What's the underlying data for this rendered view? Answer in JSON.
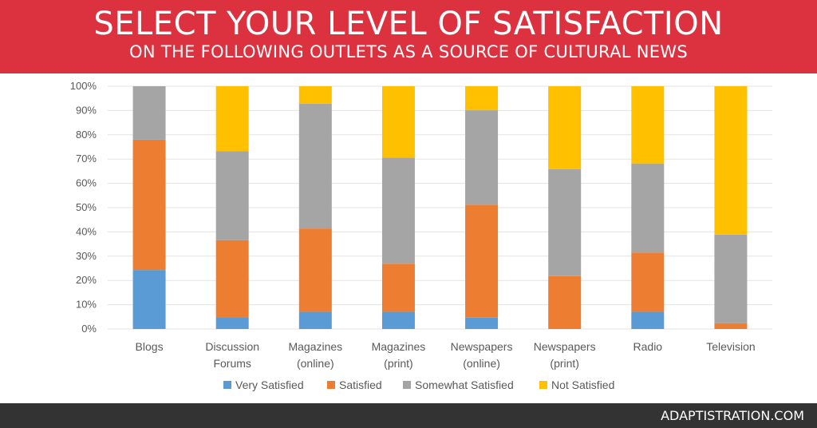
{
  "header": {
    "title": "SELECT YOUR LEVEL OF SATISFACTION",
    "subtitle": "ON THE FOLLOWING OUTLETS AS A SOURCE OF CULTURAL NEWS"
  },
  "footer": {
    "brand": "ADAPTISTRATION.COM"
  },
  "chart_data": {
    "type": "bar",
    "stacked": "100%",
    "title": "SELECT YOUR LEVEL OF SATISFACTION",
    "subtitle": "ON THE FOLLOWING OUTLETS AS A SOURCE OF CULTURAL NEWS",
    "categories": [
      [
        "Blogs"
      ],
      [
        "Discussion",
        "Forums"
      ],
      [
        "Magazines",
        "(online)"
      ],
      [
        "Magazines",
        "(print)"
      ],
      [
        "Newspapers",
        "(online)"
      ],
      [
        "Newspapers",
        "(print)"
      ],
      [
        "Radio"
      ],
      [
        "Television"
      ]
    ],
    "ylim": [
      0,
      100
    ],
    "yticks": [
      "0%",
      "10%",
      "20%",
      "30%",
      "40%",
      "50%",
      "60%",
      "70%",
      "80%",
      "90%",
      "100%"
    ],
    "grid": true,
    "legend": "bottom",
    "series": [
      {
        "name": "Very Satisfied",
        "color": "#5b9bd5",
        "values": [
          24.3,
          4.9,
          7.1,
          7.1,
          4.7,
          0,
          7.1,
          0
        ]
      },
      {
        "name": "Satisfied",
        "color": "#ed7d31",
        "values": [
          53.7,
          31.7,
          34.3,
          19.8,
          46.5,
          21.8,
          24.4,
          2.4
        ]
      },
      {
        "name": "Somewhat Satisfied",
        "color": "#a5a5a5",
        "values": [
          22.0,
          36.7,
          51.4,
          43.7,
          38.9,
          44.0,
          36.7,
          36.5
        ]
      },
      {
        "name": "Not Satisfied",
        "color": "#ffc000",
        "values": [
          0,
          26.7,
          7.2,
          29.4,
          9.9,
          34.2,
          31.8,
          61.1
        ]
      }
    ]
  }
}
